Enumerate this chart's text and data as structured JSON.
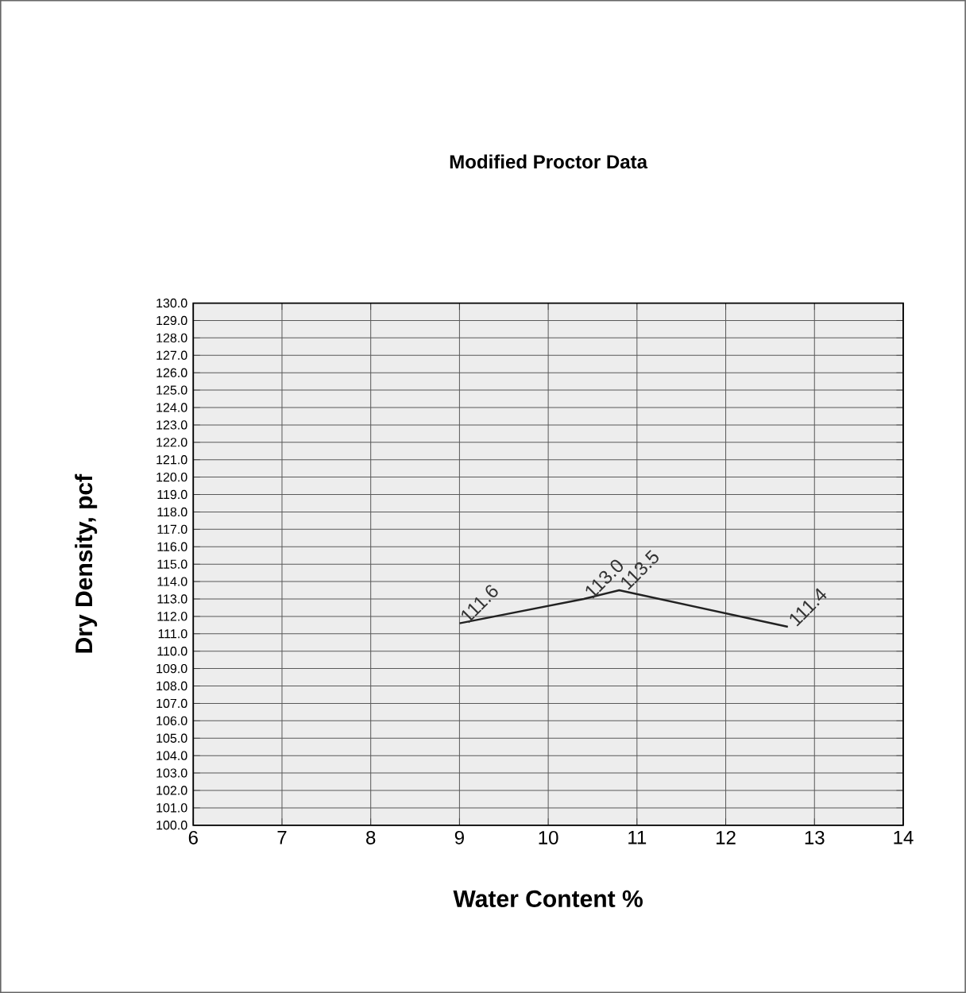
{
  "chart_data": {
    "type": "line",
    "title": "Modified Proctor Data",
    "xlabel": "Water Content %",
    "ylabel": "Dry Density, pcf",
    "x": [
      9.0,
      10.4,
      10.8,
      12.7
    ],
    "series": [
      {
        "color": "#222222",
        "values": [
          111.6,
          113.0,
          113.5,
          111.4
        ],
        "value_labels": [
          "111.6",
          "113.0",
          "113.5",
          "111.4"
        ]
      }
    ],
    "xlim": [
      6,
      14
    ],
    "xticks": [
      6,
      7,
      8,
      9,
      10,
      11,
      12,
      13,
      14
    ],
    "ylim": [
      100,
      130
    ],
    "yticks": [
      {
        "value": 100,
        "label": "100.0"
      },
      {
        "value": 101,
        "label": "101.0"
      },
      {
        "value": 102,
        "label": "102.0"
      },
      {
        "value": 103,
        "label": "103.0"
      },
      {
        "value": 104,
        "label": "104.0"
      },
      {
        "value": 105,
        "label": "105.0"
      },
      {
        "value": 106,
        "label": "106.0"
      },
      {
        "value": 107,
        "label": "107.0"
      },
      {
        "value": 108,
        "label": "108.0"
      },
      {
        "value": 109,
        "label": "109.0"
      },
      {
        "value": 110,
        "label": "110.0"
      },
      {
        "value": 111,
        "label": "111.0"
      },
      {
        "value": 112,
        "label": "112.0"
      },
      {
        "value": 113,
        "label": "113.0"
      },
      {
        "value": 114,
        "label": "114.0"
      },
      {
        "value": 115,
        "label": "115.0"
      },
      {
        "value": 116,
        "label": "116.0"
      },
      {
        "value": 117,
        "label": "117.0"
      },
      {
        "value": 118,
        "label": "118.0"
      },
      {
        "value": 119,
        "label": "119.0"
      },
      {
        "value": 120,
        "label": "120.0"
      },
      {
        "value": 121,
        "label": "121.0"
      },
      {
        "value": 122,
        "label": "122.0"
      },
      {
        "value": 123,
        "label": "123.0"
      },
      {
        "value": 124,
        "label": "124.0"
      },
      {
        "value": 125,
        "label": "125.0"
      },
      {
        "value": 126,
        "label": "126.0"
      },
      {
        "value": 127,
        "label": "127.0"
      },
      {
        "value": 128,
        "label": "128.0"
      },
      {
        "value": 129,
        "label": "129.0"
      },
      {
        "value": 130,
        "label": "130.0"
      }
    ],
    "grid": true,
    "marker": "none",
    "line_style": "solid"
  }
}
